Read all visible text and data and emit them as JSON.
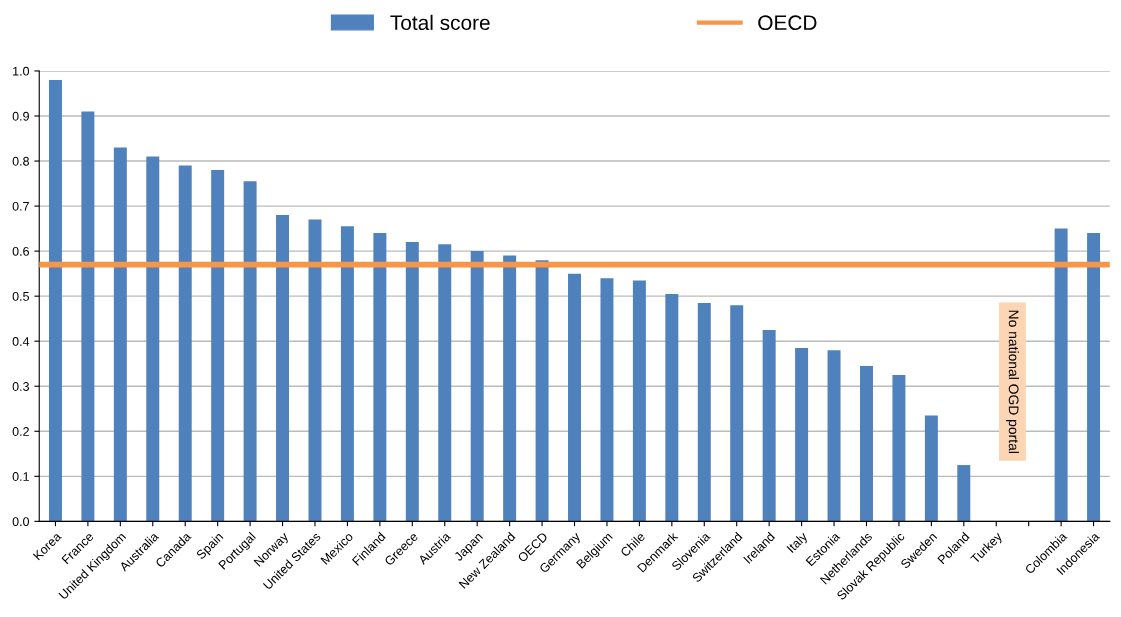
{
  "chart_data": {
    "type": "bar",
    "categories": [
      "Korea",
      "France",
      "United Kingdom",
      "Australia",
      "Canada",
      "Spain",
      "Portugal",
      "Norway",
      "United States",
      "Mexico",
      "Finland",
      "Greece",
      "Austria",
      "Japan",
      "New Zealand",
      "OECD",
      "Germany",
      "Belgium",
      "Chile",
      "Denmark",
      "Slovenia",
      "Switzerland",
      "Ireland",
      "Italy",
      "Estonia",
      "Netherlands",
      "Slovak Republic",
      "Sweden",
      "Poland",
      "Turkey",
      null,
      "Colombia",
      "Indonesia"
    ],
    "series": [
      {
        "name": "Total score",
        "color": "#4f81bd",
        "values": [
          0.98,
          0.91,
          0.83,
          0.81,
          0.79,
          0.78,
          0.755,
          0.68,
          0.67,
          0.655,
          0.64,
          0.62,
          0.615,
          0.6,
          0.59,
          0.58,
          0.55,
          0.54,
          0.535,
          0.505,
          0.485,
          0.48,
          0.425,
          0.385,
          0.38,
          0.345,
          0.325,
          0.235,
          0.125,
          null,
          null,
          0.65,
          0.64
        ]
      }
    ],
    "ref_lines": [
      {
        "axis": "y",
        "value": 0.57,
        "label": "OECD",
        "color": "#f79646"
      }
    ],
    "annotations": [
      "No national OGD portal"
    ],
    "ylim": [
      0,
      1.0
    ],
    "yticks": [
      {
        "value": 0,
        "label": "0.0"
      },
      0.1,
      0.2,
      0.3,
      0.4,
      0.5,
      0.6,
      0.7,
      0.8,
      0.9,
      {
        "value": 1.0,
        "label": "1.0"
      }
    ],
    "grid": "y",
    "legend": "top"
  }
}
